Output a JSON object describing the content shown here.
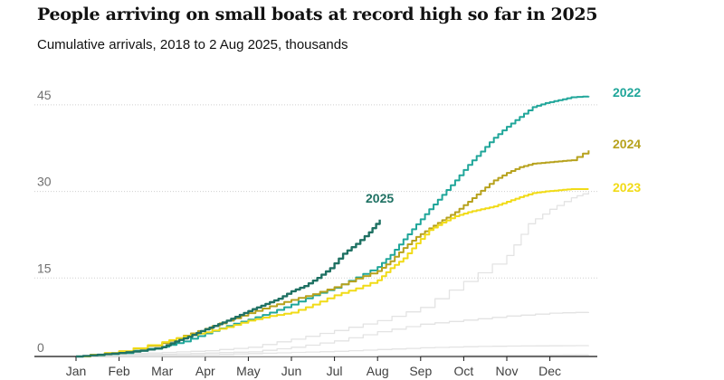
{
  "header": {
    "title": "People arriving on small boats at record high so far in 2025",
    "subtitle": "Cumulative arrivals, 2018 to 2 Aug 2025, thousands"
  },
  "chart_data": {
    "type": "line",
    "title": "People arriving on small boats at record high so far in 2025",
    "subtitle": "Cumulative arrivals, 2018 to 2 Aug 2025, thousands",
    "xlabel": "",
    "ylabel": "",
    "x_ticks": [
      "Jan",
      "Feb",
      "Mar",
      "Apr",
      "May",
      "Jun",
      "Jul",
      "Aug",
      "Sep",
      "Oct",
      "Nov",
      "Dec"
    ],
    "y_ticks": [
      0,
      15,
      30,
      45
    ],
    "ylim": [
      0,
      46
    ],
    "x_unit": "month of year (1.0 = 1 Jan)",
    "grid": "horizontal dotted gridlines",
    "series": [
      {
        "name": "",
        "color": "#e3e3e3",
        "x": [
          1.0,
          3.0,
          6.0,
          9.0,
          12.0,
          12.9
        ],
        "y": [
          0.0,
          0.05,
          0.1,
          0.15,
          0.25,
          0.3
        ]
      },
      {
        "name": "",
        "color": "#e3e3e3",
        "x": [
          1.0,
          2.0,
          3.0,
          4.0,
          5.0,
          6.0,
          7.0,
          8.0,
          9.0,
          10.0,
          11.0,
          12.0,
          12.9
        ],
        "y": [
          0.0,
          0.1,
          0.2,
          0.3,
          0.5,
          0.7,
          0.9,
          1.2,
          1.5,
          1.7,
          1.8,
          1.85,
          1.9
        ]
      },
      {
        "name": "",
        "color": "#e3e3e3",
        "x": [
          1.0,
          2.0,
          3.0,
          4.0,
          5.0,
          6.0,
          7.0,
          8.0,
          9.0,
          10.0,
          11.0,
          12.0,
          12.9
        ],
        "y": [
          0.0,
          0.2,
          0.4,
          0.6,
          0.8,
          1.6,
          2.7,
          4.3,
          5.6,
          6.3,
          7.0,
          7.5,
          7.7
        ]
      },
      {
        "name": "",
        "color": "#e3e3e3",
        "x": [
          1.0,
          2.0,
          3.0,
          4.0,
          5.0,
          6.0,
          7.0,
          8.0,
          9.0,
          10.0,
          11.0,
          11.5,
          12.0,
          12.5,
          12.9
        ],
        "y": [
          0.0,
          0.4,
          0.7,
          1.0,
          1.6,
          3.0,
          4.5,
          6.2,
          8.5,
          13.0,
          17.5,
          23.0,
          25.5,
          27.5,
          28.5
        ]
      },
      {
        "name": "2022",
        "color": "#20a69a",
        "x": [
          1.0,
          2.0,
          3.0,
          3.5,
          4.0,
          4.5,
          5.0,
          5.5,
          6.0,
          6.5,
          7.0,
          7.5,
          8.0,
          8.3,
          8.6,
          8.9,
          9.2,
          9.5,
          9.8,
          10.1,
          10.4,
          10.7,
          11.0,
          11.3,
          11.6,
          11.9,
          12.2,
          12.5,
          12.9
        ],
        "y": [
          0.0,
          0.6,
          1.7,
          2.6,
          4.0,
          5.3,
          6.4,
          7.6,
          9.0,
          10.6,
          11.9,
          13.7,
          15.5,
          17.6,
          20.3,
          22.9,
          25.5,
          28.0,
          30.5,
          33.2,
          35.5,
          37.9,
          39.8,
          41.5,
          43.2,
          43.9,
          44.4,
          44.9,
          45.1
        ]
      },
      {
        "name": "2024",
        "color": "#b7a21d",
        "x": [
          1.0,
          2.0,
          3.0,
          3.5,
          4.0,
          4.5,
          5.0,
          5.5,
          6.0,
          6.5,
          7.0,
          7.5,
          8.0,
          8.3,
          8.6,
          8.9,
          9.2,
          9.5,
          9.8,
          10.1,
          10.4,
          10.7,
          11.0,
          11.3,
          11.6,
          11.9,
          12.2,
          12.5,
          12.9
        ],
        "y": [
          0.0,
          0.9,
          2.3,
          3.6,
          4.8,
          6.2,
          7.5,
          8.7,
          9.8,
          10.8,
          12.0,
          13.5,
          14.8,
          16.5,
          18.8,
          20.7,
          22.2,
          23.6,
          25.0,
          26.8,
          28.7,
          30.5,
          31.8,
          32.8,
          33.4,
          33.6,
          33.8,
          34.0,
          35.7
        ]
      },
      {
        "name": "2023",
        "color": "#f1db17",
        "x": [
          1.0,
          2.0,
          3.0,
          3.5,
          4.0,
          4.5,
          5.0,
          5.5,
          6.0,
          6.5,
          7.0,
          7.5,
          8.0,
          8.3,
          8.6,
          8.9,
          9.2,
          9.5,
          9.8,
          10.1,
          10.4,
          10.7,
          11.0,
          11.3,
          11.6,
          11.9,
          12.2,
          12.5,
          12.9
        ],
        "y": [
          0.0,
          0.9,
          2.5,
          3.5,
          4.2,
          5.1,
          6.2,
          7.0,
          7.6,
          9.0,
          10.6,
          11.8,
          13.2,
          15.3,
          17.0,
          19.6,
          21.9,
          23.2,
          24.3,
          25.0,
          25.5,
          26.0,
          26.8,
          27.6,
          28.3,
          28.6,
          28.8,
          29.0,
          29.0
        ]
      },
      {
        "name": "2025",
        "color": "#1f7163",
        "x": [
          1.0,
          1.5,
          2.0,
          2.5,
          3.0,
          3.3,
          3.6,
          3.9,
          4.2,
          4.5,
          4.8,
          5.1,
          5.4,
          5.7,
          6.0,
          6.3,
          6.6,
          6.9,
          7.2,
          7.5,
          7.8,
          8.05
        ],
        "y": [
          0.0,
          0.3,
          0.6,
          1.0,
          1.6,
          2.6,
          3.4,
          4.4,
          5.3,
          6.2,
          7.2,
          8.2,
          9.1,
          10.0,
          11.3,
          12.2,
          13.6,
          15.3,
          17.8,
          19.5,
          21.5,
          23.7
        ]
      }
    ]
  }
}
